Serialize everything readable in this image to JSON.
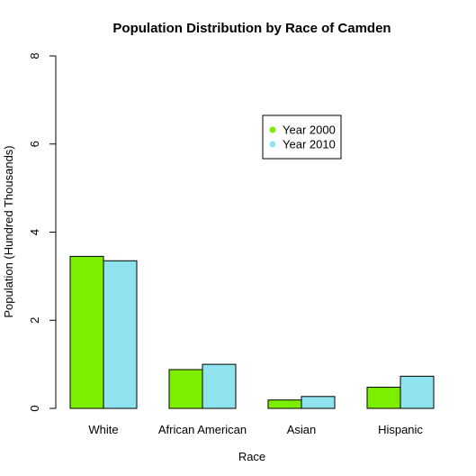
{
  "chart_data": {
    "type": "bar",
    "title": "Population Distribution by Race of Camden",
    "xlabel": "Race",
    "ylabel": "Population (Hundred Thousands)",
    "categories": [
      "White",
      "African American",
      "Asian",
      "Hispanic"
    ],
    "series": [
      {
        "name": "Year 2000",
        "color": "#7cee00",
        "values": [
          3.45,
          0.88,
          0.19,
          0.48
        ]
      },
      {
        "name": "Year 2010",
        "color": "#8fe3ee",
        "values": [
          3.35,
          1.0,
          0.27,
          0.73
        ]
      }
    ],
    "ylim": [
      0,
      8
    ],
    "yticks": [
      0,
      2,
      4,
      6,
      8
    ],
    "grid": false,
    "legend_position": "top-right"
  }
}
